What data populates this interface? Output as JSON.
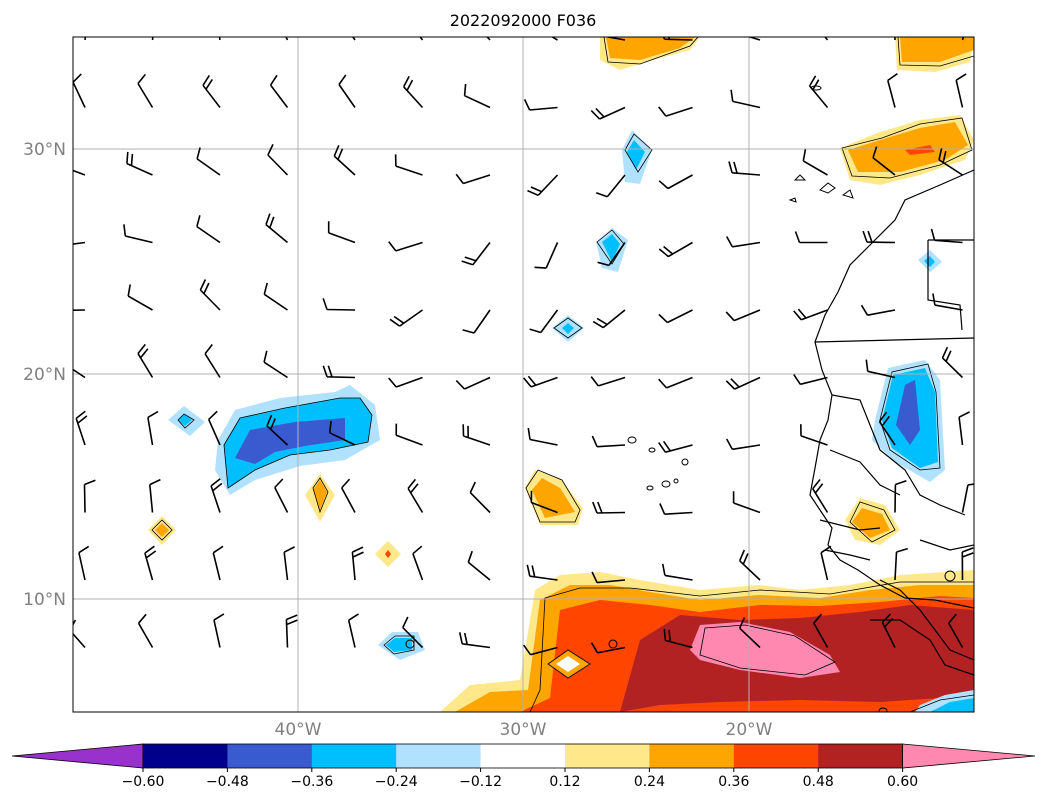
{
  "title": "2022092000 F036",
  "lat_labels": [
    "30°N",
    "20°N",
    "10°N"
  ],
  "lon_labels": [
    "40°W",
    "30°W",
    "20°W"
  ],
  "colorbar": {
    "ticks": [
      "−0.60",
      "−0.48",
      "−0.36",
      "−0.24",
      "−0.12",
      "0.12",
      "0.24",
      "0.36",
      "0.48",
      "0.60"
    ],
    "colors": [
      "#9932cc",
      "#00008b",
      "#3a5bd0",
      "#00bfff",
      "#b0e2ff",
      "#ffffff",
      "#ffe88a",
      "#ffa500",
      "#ff4500",
      "#b22222",
      "#ff88b0"
    ]
  },
  "map": {
    "extent": {
      "lon_min": -50,
      "lon_max": -10,
      "lat_min": 5,
      "lat_max": 35
    },
    "gridlines": true,
    "wind_barbs": true,
    "coastlines": true
  }
}
